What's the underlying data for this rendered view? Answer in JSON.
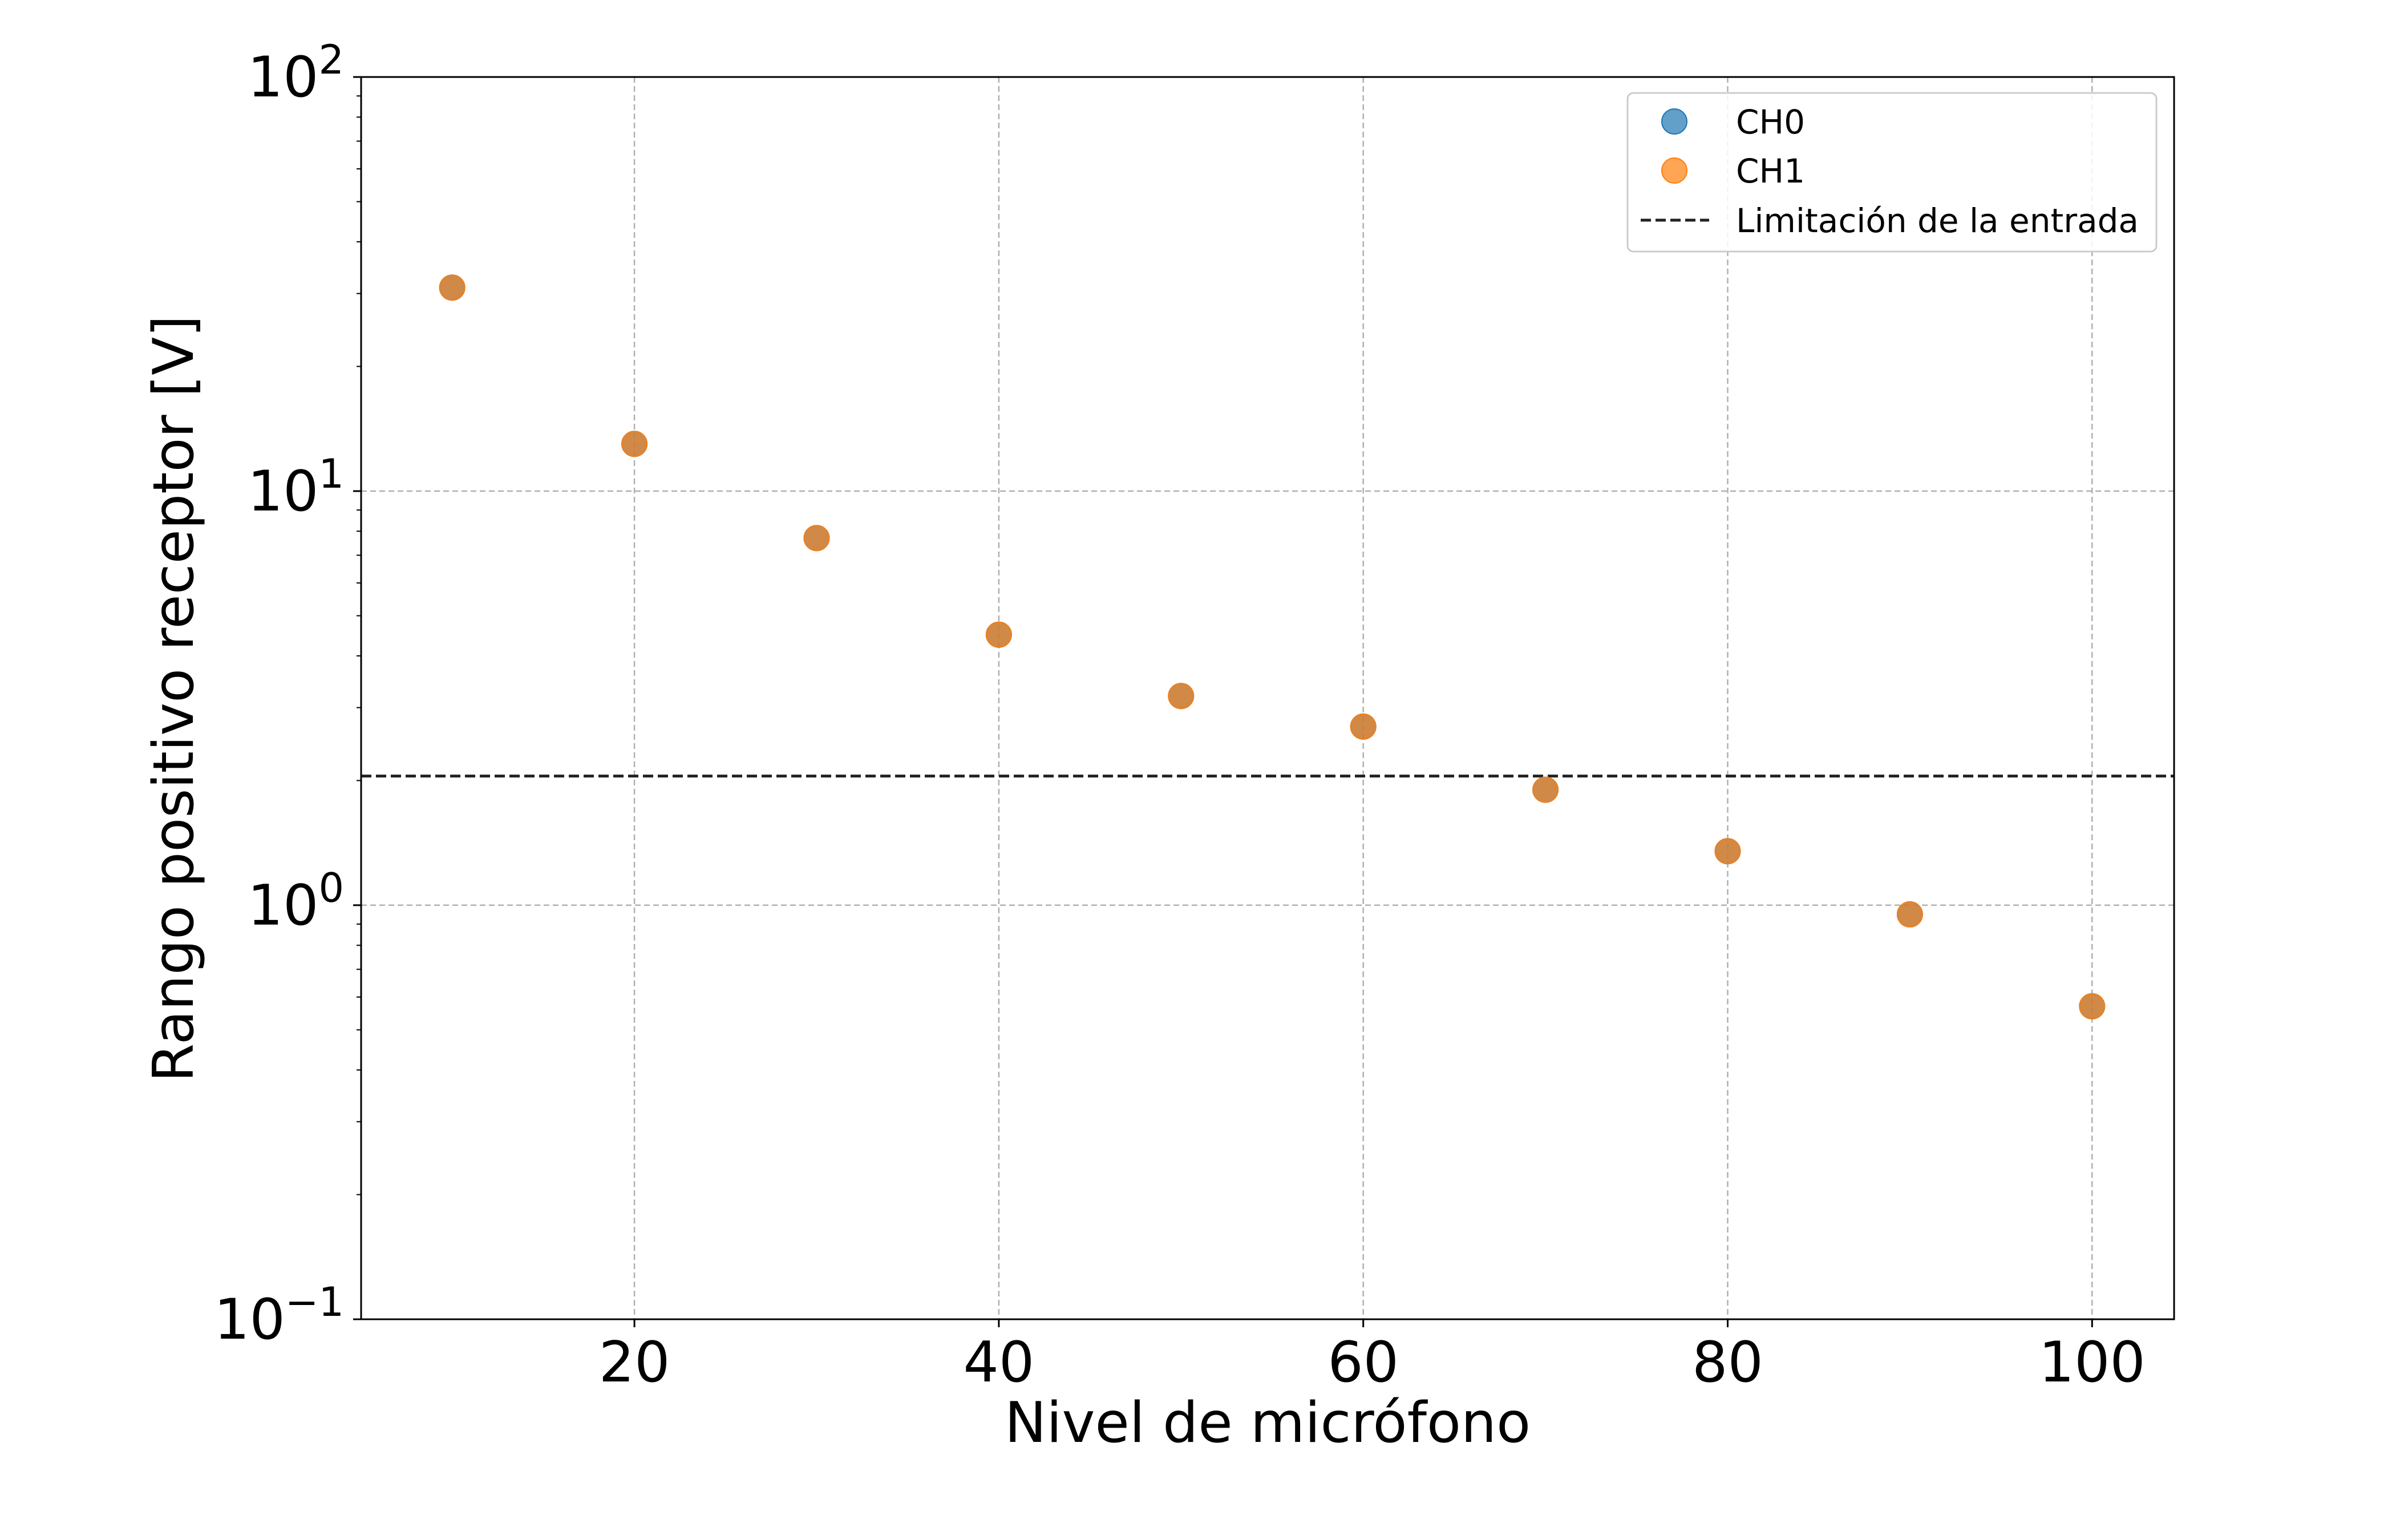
{
  "chart_data": {
    "type": "scatter",
    "title": "",
    "xlabel": "Nivel de micrófono",
    "ylabel": "Rango positivo receptor [V]",
    "xlim": [
      5,
      104.5
    ],
    "ylim": [
      0.1,
      100
    ],
    "yscale": "log",
    "grid": true,
    "x_ticks": [
      20,
      40,
      60,
      80,
      100
    ],
    "x_tick_labels": [
      "20",
      "40",
      "60",
      "80",
      "100"
    ],
    "y_ticks": [
      {
        "value": 0.1,
        "base": "10",
        "exp": "−1"
      },
      {
        "value": 1,
        "base": "10",
        "exp": "0"
      },
      {
        "value": 10,
        "base": "10",
        "exp": "1"
      },
      {
        "value": 100,
        "base": "10",
        "exp": "2"
      }
    ],
    "legend_position": "top-right",
    "series": [
      {
        "name": "CH0",
        "color": "#1f77b4",
        "marker": "circle",
        "x": [
          10,
          20,
          30,
          40,
          50,
          60,
          70,
          80,
          90,
          100
        ],
        "y": [
          31,
          13,
          7.7,
          4.5,
          3.2,
          2.7,
          1.9,
          1.35,
          0.95,
          0.57
        ]
      },
      {
        "name": "CH1",
        "color": "#ff7f0e",
        "marker": "circle",
        "x": [
          10,
          20,
          30,
          40,
          50,
          60,
          70,
          80,
          90,
          100
        ],
        "y": [
          31,
          13,
          7.7,
          4.5,
          3.2,
          2.7,
          1.9,
          1.35,
          0.95,
          0.57
        ]
      }
    ],
    "reference_lines": [
      {
        "name": "Limitación de la entrada",
        "y": 2.05,
        "style": "dashed",
        "color": "#222222"
      }
    ]
  }
}
